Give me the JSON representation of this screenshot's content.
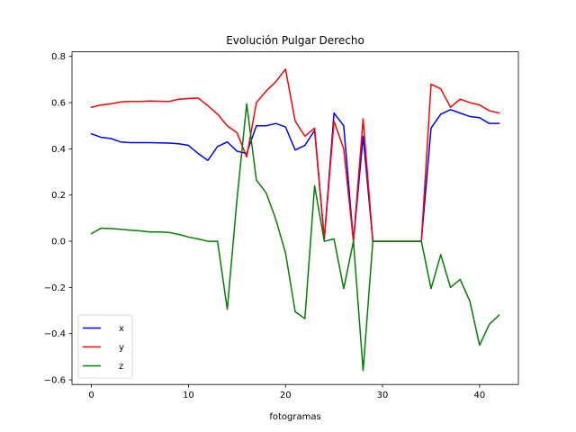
{
  "chart_data": {
    "type": "line",
    "title": "Evolución Pulgar Derecho",
    "xlabel": "fotogramas",
    "ylabel": "",
    "xlim": [
      -2,
      44
    ],
    "ylim": [
      -0.62,
      0.82
    ],
    "x_ticks": [
      0,
      10,
      20,
      30,
      40
    ],
    "y_ticks": [
      -0.6,
      -0.4,
      -0.2,
      0.0,
      0.2,
      0.4,
      0.6,
      0.8
    ],
    "y_tick_labels": [
      "−0.6",
      "−0.4",
      "−0.2",
      "0.0",
      "0.2",
      "0.4",
      "0.6",
      "0.8"
    ],
    "grid": false,
    "legend_position": "lower-left",
    "x": [
      0,
      1,
      2,
      3,
      4,
      5,
      6,
      7,
      8,
      9,
      10,
      11,
      12,
      13,
      14,
      15,
      16,
      17,
      18,
      19,
      20,
      21,
      22,
      23,
      24,
      25,
      26,
      27,
      28,
      29,
      30,
      31,
      32,
      33,
      34,
      35,
      36,
      37,
      38,
      39,
      40,
      41,
      42
    ],
    "series": [
      {
        "name": "x",
        "color": "#0000ff",
        "values": [
          0.465,
          0.45,
          0.445,
          0.43,
          0.427,
          0.427,
          0.427,
          0.426,
          0.425,
          0.422,
          0.415,
          0.38,
          0.35,
          0.41,
          0.43,
          0.39,
          0.38,
          0.5,
          0.5,
          0.51,
          0.495,
          0.395,
          0.415,
          0.48,
          0.01,
          0.555,
          0.5,
          0.0,
          0.455,
          0.0,
          0.0,
          0.0,
          0.0,
          0.0,
          0.0,
          0.49,
          0.55,
          0.57,
          0.555,
          0.54,
          0.535,
          0.51,
          0.51
        ]
      },
      {
        "name": "y",
        "color": "#ff0000",
        "values": [
          0.58,
          0.59,
          0.595,
          0.603,
          0.605,
          0.605,
          0.607,
          0.606,
          0.605,
          0.615,
          0.618,
          0.62,
          0.587,
          0.55,
          0.5,
          0.47,
          0.365,
          0.6,
          0.65,
          0.69,
          0.745,
          0.52,
          0.455,
          0.49,
          0.01,
          0.52,
          0.4,
          0.0,
          0.53,
          0.0,
          0.0,
          0.0,
          0.0,
          0.0,
          0.0,
          0.68,
          0.66,
          0.58,
          0.615,
          0.6,
          0.59,
          0.565,
          0.555
        ]
      },
      {
        "name": "z",
        "color": "#008000",
        "values": [
          0.033,
          0.057,
          0.055,
          0.052,
          0.048,
          0.045,
          0.04,
          0.04,
          0.038,
          0.03,
          0.018,
          0.01,
          0.0,
          0.0,
          -0.295,
          0.18,
          0.595,
          0.265,
          0.21,
          0.095,
          -0.05,
          -0.305,
          -0.335,
          0.24,
          0.0,
          0.01,
          -0.205,
          0.0,
          -0.56,
          0.0,
          0.0,
          0.0,
          0.0,
          0.0,
          0.0,
          -0.205,
          -0.058,
          -0.2,
          -0.165,
          -0.26,
          -0.45,
          -0.36,
          -0.32
        ]
      }
    ]
  }
}
